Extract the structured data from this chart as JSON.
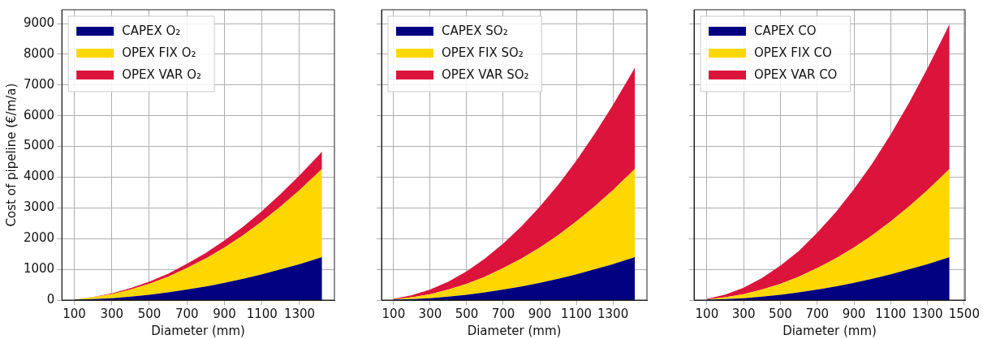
{
  "chart_data": [
    {
      "type": "area",
      "stacked": true,
      "xlabel": "Diameter (mm)",
      "ylabel": "Cost of pipeline (€/m/a)",
      "legend": "top left",
      "grid": true,
      "x": [
        100,
        200,
        300,
        400,
        500,
        600,
        700,
        800,
        900,
        1000,
        1100,
        1200,
        1300,
        1400,
        1420
      ],
      "series": [
        {
          "name": "CAPEX O₂",
          "color": "#000080",
          "values": [
            10,
            30,
            60,
            110,
            170,
            250,
            340,
            440,
            560,
            690,
            840,
            1000,
            1170,
            1360,
            1400
          ]
        },
        {
          "name": "OPEX FIX O₂",
          "color": "#ffd700",
          "values": [
            10,
            60,
            130,
            230,
            360,
            510,
            700,
            910,
            1150,
            1420,
            1720,
            2050,
            2410,
            2790,
            2870
          ]
        },
        {
          "name": "OPEX VAR O₂",
          "color": "#dc143c",
          "values": [
            0,
            10,
            30,
            50,
            70,
            100,
            140,
            180,
            230,
            280,
            340,
            410,
            480,
            550,
            570
          ]
        }
      ],
      "xlim": [
        34,
        1486
      ],
      "xticks": [
        100,
        300,
        500,
        700,
        900,
        1100,
        1300
      ],
      "ylim": [
        0,
        9450
      ],
      "yticks": [
        0,
        1000,
        2000,
        3000,
        4000,
        5000,
        6000,
        7000,
        8000,
        9000
      ]
    },
    {
      "type": "area",
      "stacked": true,
      "xlabel": "Diameter (mm)",
      "legend": "top left",
      "grid": true,
      "tick_labels": "x",
      "x": [
        100,
        200,
        300,
        400,
        500,
        600,
        700,
        800,
        900,
        1000,
        1100,
        1200,
        1300,
        1400,
        1420
      ],
      "series": [
        {
          "name": "CAPEX SO₂",
          "color": "#000080",
          "values": [
            10,
            30,
            60,
            110,
            170,
            250,
            340,
            440,
            560,
            690,
            840,
            1000,
            1170,
            1360,
            1400
          ]
        },
        {
          "name": "OPEX FIX SO₂",
          "color": "#ffd700",
          "values": [
            10,
            60,
            130,
            230,
            360,
            510,
            700,
            910,
            1150,
            1420,
            1720,
            2050,
            2410,
            2790,
            2870
          ]
        },
        {
          "name": "OPEX VAR SO₂",
          "color": "#dc143c",
          "values": [
            20,
            70,
            150,
            260,
            410,
            590,
            800,
            1050,
            1330,
            1640,
            1980,
            2360,
            2770,
            3210,
            3300
          ]
        }
      ],
      "xlim": [
        34,
        1486
      ],
      "xticks": [
        100,
        300,
        500,
        700,
        900,
        1100,
        1300
      ],
      "ylim": [
        0,
        9450
      ],
      "yticks": [
        0,
        1000,
        2000,
        3000,
        4000,
        5000,
        6000,
        7000,
        8000,
        9000
      ]
    },
    {
      "type": "area",
      "stacked": true,
      "xlabel": "Diameter (mm)",
      "legend": "top left",
      "grid": true,
      "tick_labels": "x",
      "x": [
        100,
        200,
        300,
        400,
        500,
        600,
        700,
        800,
        900,
        1000,
        1100,
        1200,
        1300,
        1400,
        1420
      ],
      "series": [
        {
          "name": "CAPEX CO",
          "color": "#000080",
          "values": [
            10,
            30,
            60,
            110,
            170,
            250,
            340,
            440,
            560,
            690,
            840,
            1000,
            1170,
            1360,
            1400
          ]
        },
        {
          "name": "OPEX FIX CO",
          "color": "#ffd700",
          "values": [
            10,
            60,
            130,
            230,
            360,
            510,
            700,
            910,
            1150,
            1420,
            1720,
            2050,
            2410,
            2790,
            2870
          ]
        },
        {
          "name": "OPEX VAR CO",
          "color": "#dc143c",
          "values": [
            20,
            90,
            210,
            380,
            590,
            840,
            1150,
            1500,
            1900,
            2340,
            2830,
            3370,
            3960,
            4590,
            4720
          ]
        }
      ],
      "xlim": [
        30,
        1505
      ],
      "xticks": [
        100,
        300,
        500,
        700,
        900,
        1100,
        1300,
        1500
      ],
      "ylim": [
        0,
        9450
      ],
      "yticks": [
        0,
        1000,
        2000,
        3000,
        4000,
        5000,
        6000,
        7000,
        8000,
        9000
      ]
    }
  ]
}
